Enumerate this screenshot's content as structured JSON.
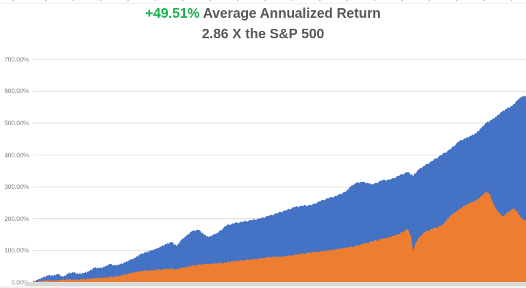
{
  "title": {
    "highlight": "+49.51%",
    "line1_rest": " Average Annualized Return",
    "line2": "2.86 X the S&P 500",
    "highlight_color": "#1ab050",
    "text_color": "#595959"
  },
  "chart_data": {
    "type": "area",
    "title": "+49.51% Average Annualized Return",
    "subtitle": "2.86 X the S&P 500",
    "xlabel": "",
    "ylabel": "",
    "x_axis_labels_visible": false,
    "legend": "none",
    "grid": true,
    "gridline_color": "#d9d9d9",
    "ylim": [
      0,
      700
    ],
    "y_tick_values": [
      0,
      100,
      200,
      300,
      400,
      500,
      600,
      700
    ],
    "y_tick_labels": [
      "0.00%",
      "100.00%",
      "200.00%",
      "300.00%",
      "400.00%",
      "500.00%",
      "600.00%",
      "700.00%"
    ],
    "jitter_pct": 3,
    "series": [
      {
        "name": "strategy-cumulative-return",
        "color": "#4472C4",
        "points": [
          [
            0,
            2
          ],
          [
            1,
            8
          ],
          [
            1.9,
            14
          ],
          [
            3.1,
            22
          ],
          [
            4.2,
            21
          ],
          [
            5.1,
            26
          ],
          [
            6.1,
            17
          ],
          [
            7.2,
            28
          ],
          [
            8.3,
            31
          ],
          [
            9.3,
            26
          ],
          [
            10.4,
            29
          ],
          [
            11.4,
            35
          ],
          [
            12.5,
            46
          ],
          [
            13.5,
            44
          ],
          [
            14.6,
            49
          ],
          [
            15.6,
            57
          ],
          [
            16.7,
            53
          ],
          [
            17.6,
            56
          ],
          [
            18.8,
            63
          ],
          [
            19.7,
            70
          ],
          [
            20.8,
            77
          ],
          [
            21.8,
            88
          ],
          [
            22.9,
            94
          ],
          [
            23.9,
            99
          ],
          [
            25,
            105
          ],
          [
            26,
            112
          ],
          [
            27.1,
            120
          ],
          [
            28.1,
            126
          ],
          [
            29.2,
            114
          ],
          [
            30.1,
            133
          ],
          [
            31.1,
            145
          ],
          [
            32.2,
            160
          ],
          [
            33.6,
            165
          ],
          [
            34.7,
            150
          ],
          [
            35.7,
            142
          ],
          [
            36.7,
            150
          ],
          [
            37.5,
            155
          ],
          [
            39.2,
            178
          ],
          [
            40.8,
            185
          ],
          [
            42.6,
            190
          ],
          [
            44.4,
            195
          ],
          [
            46.1,
            200
          ],
          [
            47.8,
            208
          ],
          [
            49.6,
            217
          ],
          [
            51.4,
            226
          ],
          [
            53.1,
            236
          ],
          [
            54.7,
            240
          ],
          [
            56.5,
            242
          ],
          [
            58.3,
            255
          ],
          [
            60,
            264
          ],
          [
            61.7,
            272
          ],
          [
            63.5,
            285
          ],
          [
            64.4,
            300
          ],
          [
            65.6,
            312
          ],
          [
            66.9,
            315
          ],
          [
            68.1,
            310
          ],
          [
            69,
            307
          ],
          [
            70.8,
            320
          ],
          [
            72.5,
            322
          ],
          [
            74.3,
            335
          ],
          [
            76,
            346
          ],
          [
            77.1,
            334
          ],
          [
            78.3,
            355
          ],
          [
            79.4,
            365
          ],
          [
            81.1,
            382
          ],
          [
            82.9,
            400
          ],
          [
            84.7,
            418
          ],
          [
            86.4,
            442
          ],
          [
            87.8,
            452
          ],
          [
            88.9,
            460
          ],
          [
            89.9,
            468
          ],
          [
            91,
            485
          ],
          [
            91.9,
            500
          ],
          [
            93.1,
            510
          ],
          [
            94,
            520
          ],
          [
            95.1,
            535
          ],
          [
            96.1,
            545
          ],
          [
            97.2,
            553
          ],
          [
            98.2,
            570
          ],
          [
            98.9,
            580
          ],
          [
            99.6,
            585
          ],
          [
            100,
            583
          ]
        ]
      },
      {
        "name": "sp500-cumulative-return",
        "color": "#ED7D31",
        "points": [
          [
            0,
            1
          ],
          [
            1.7,
            4
          ],
          [
            3.1,
            6
          ],
          [
            4.4,
            5
          ],
          [
            5.8,
            7
          ],
          [
            7.2,
            9
          ],
          [
            8.6,
            8
          ],
          [
            10,
            9
          ],
          [
            11.4,
            11
          ],
          [
            12.8,
            13
          ],
          [
            14.2,
            14
          ],
          [
            15.6,
            16
          ],
          [
            16.9,
            18
          ],
          [
            18.3,
            23
          ],
          [
            19.7,
            28
          ],
          [
            21.1,
            33
          ],
          [
            22.5,
            36
          ],
          [
            23.9,
            37
          ],
          [
            25.3,
            39
          ],
          [
            26.7,
            41
          ],
          [
            28.1,
            43
          ],
          [
            29.2,
            40
          ],
          [
            30.1,
            45
          ],
          [
            31.1,
            47
          ],
          [
            32.2,
            52
          ],
          [
            33.6,
            55
          ],
          [
            35,
            57
          ],
          [
            36.4,
            58
          ],
          [
            37.8,
            60
          ],
          [
            39.2,
            62
          ],
          [
            40.6,
            66
          ],
          [
            41.9,
            68
          ],
          [
            43.3,
            70
          ],
          [
            44.7,
            72
          ],
          [
            46.1,
            75
          ],
          [
            47.5,
            78
          ],
          [
            48.9,
            80
          ],
          [
            50.3,
            80
          ],
          [
            51.7,
            83
          ],
          [
            53.1,
            86
          ],
          [
            54.4,
            89
          ],
          [
            55.8,
            92
          ],
          [
            57.2,
            95
          ],
          [
            58.6,
            97
          ],
          [
            60,
            100
          ],
          [
            61.4,
            103
          ],
          [
            62.8,
            107
          ],
          [
            64.2,
            110
          ],
          [
            65.6,
            114
          ],
          [
            66.9,
            120
          ],
          [
            69,
            129
          ],
          [
            70.8,
            136
          ],
          [
            72.5,
            142
          ],
          [
            74.3,
            152
          ],
          [
            76,
            167
          ],
          [
            76.7,
            143
          ],
          [
            77.1,
            97
          ],
          [
            77.6,
            122
          ],
          [
            78.3,
            140
          ],
          [
            79.4,
            157
          ],
          [
            81.1,
            168
          ],
          [
            82.9,
            178
          ],
          [
            83.9,
            195
          ],
          [
            84.7,
            210
          ],
          [
            85.7,
            220
          ],
          [
            86.4,
            228
          ],
          [
            87.5,
            240
          ],
          [
            88.5,
            248
          ],
          [
            89.2,
            252
          ],
          [
            89.9,
            258
          ],
          [
            90.6,
            265
          ],
          [
            91.3,
            275
          ],
          [
            91.9,
            285
          ],
          [
            92.6,
            278
          ],
          [
            93.3,
            250
          ],
          [
            94,
            228
          ],
          [
            94.7,
            215
          ],
          [
            95.4,
            205
          ],
          [
            96.1,
            218
          ],
          [
            96.8,
            225
          ],
          [
            97.5,
            232
          ],
          [
            98.2,
            222
          ],
          [
            98.6,
            212
          ],
          [
            99.2,
            200
          ],
          [
            99.6,
            195
          ],
          [
            100,
            193
          ]
        ]
      }
    ]
  }
}
